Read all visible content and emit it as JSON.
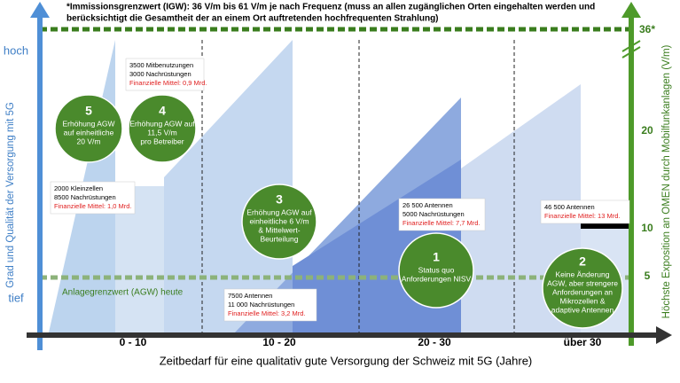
{
  "note": [
    "*Immissionsgrenzwert (IGW): 36 V/m bis 61 V/m je nach Frequenz (muss an allen zugänglichen Orten eingehalten werden und",
    "berücksichtigt die Gesamtheit der an einem Ort auftretenden hochfrequenten Strahlung)"
  ],
  "left_axis": {
    "title": "Grad und Qualität der Versorgung mit 5G",
    "high": "hoch",
    "low": "tief"
  },
  "right_axis": {
    "title": "Höchste Exposition an OMEN durch Mobilfunkanlagen (V/m)",
    "ticks": [
      "36*",
      "20",
      "10",
      "5"
    ]
  },
  "baseline_label": "Anlagegrenzwert (AGW) heute",
  "x_axis": {
    "title": "Zeitbedarf für eine qualitativ gute Versorgung der Schweiz mit 5G (Jahre)",
    "categories": [
      "0 - 10",
      "10 - 20",
      "20 - 30",
      "über 30"
    ]
  },
  "scenarios": [
    {
      "number": "5",
      "lines": [
        "Erhöhung AGW",
        "auf einheitliche",
        "20 V/m"
      ]
    },
    {
      "number": "4",
      "lines": [
        "Erhöhung AGW auf",
        "11,5 V/m",
        "pro Betreiber"
      ]
    },
    {
      "number": "3",
      "lines": [
        "Erhöhung AGW auf",
        "einheitliche 6 V/m",
        "& Mittelwert-",
        "Beurteilung"
      ]
    },
    {
      "number": "1",
      "lines": [
        "Status quo",
        "Anforderungen NISV"
      ]
    },
    {
      "number": "2",
      "lines": [
        "Keine Änderung",
        "AGW, aber strengere",
        "Anforderungen an",
        "Mikrozellen &",
        "adaptive Antennen"
      ]
    }
  ],
  "info_boxes": [
    {
      "lines": [
        "3500 Mitbenutzungen",
        "3000 Nachrüstungen"
      ],
      "funding": "Finanzielle Mittel: 0,9 Mrd."
    },
    {
      "lines": [
        "2000 Kleinzellen",
        "8500 Nachrüstungen"
      ],
      "funding": "Finanzielle Mittel: 1,0 Mrd."
    },
    {
      "lines": [
        "7500 Antennen",
        "11 000 Nachrüstungen"
      ],
      "funding": "Finanzielle Mittel: 3,2 Mrd."
    },
    {
      "lines": [
        "26 500 Antennen",
        "5000 Nachrüstungen"
      ],
      "funding": "Finanzielle Mittel: 7,7 Mrd."
    },
    {
      "lines": [
        "46 500 Antennen"
      ],
      "funding": "Finanzielle Mittel: 13 Mrd."
    }
  ]
}
